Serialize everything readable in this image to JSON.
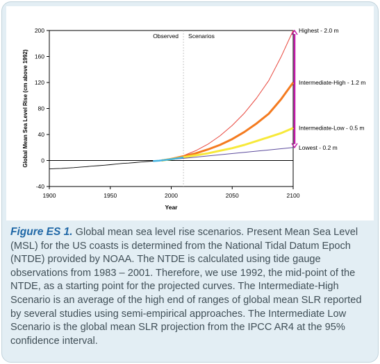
{
  "chart_data": {
    "type": "line",
    "title": "",
    "xlabel": "Year",
    "ylabel": "Global Mean Sea Level Rise (cm above 1992)",
    "xlim": [
      1900,
      2100
    ],
    "ylim": [
      -40,
      200
    ],
    "xticks": [
      1900,
      1950,
      2000,
      2050,
      2100
    ],
    "yticks": [
      -40,
      0,
      40,
      80,
      120,
      160,
      200
    ],
    "grid": false,
    "divider_year": 2010,
    "divider_labels": [
      "Observed",
      "Scenarios"
    ],
    "observed": {
      "x": [
        1900,
        1905,
        1910,
        1915,
        1920,
        1925,
        1930,
        1935,
        1940,
        1945,
        1950,
        1955,
        1960,
        1965,
        1970,
        1975,
        1980,
        1985,
        1990,
        1992
      ],
      "y": [
        -13,
        -12.5,
        -12.2,
        -11.5,
        -11,
        -10.2,
        -9.5,
        -8.6,
        -8,
        -7.2,
        -6.4,
        -5.4,
        -4.5,
        -3.9,
        -3.2,
        -2.3,
        -1.6,
        -1,
        -0.4,
        0
      ]
    },
    "bridge": {
      "x": [
        1985,
        1990,
        1995,
        2000,
        2005,
        2010
      ],
      "y": [
        -1,
        -0.3,
        0.8,
        2,
        3.4,
        4.8
      ]
    },
    "series": [
      {
        "name": "Highest - 2.0 m",
        "color": "#e8453b",
        "width": 1,
        "x": [
          1992,
          2000,
          2010,
          2020,
          2030,
          2040,
          2050,
          2060,
          2070,
          2080,
          2090,
          2100
        ],
        "y": [
          0,
          2.5,
          7.5,
          15,
          25,
          38,
          54,
          73,
          96,
          123,
          159,
          200
        ]
      },
      {
        "name": "Intermediate-High - 1.2 m",
        "color": "#f47b20",
        "width": 3,
        "x": [
          1992,
          2000,
          2010,
          2020,
          2030,
          2040,
          2050,
          2060,
          2070,
          2080,
          2090,
          2100
        ],
        "y": [
          0,
          2.5,
          6.5,
          11,
          17,
          24,
          33,
          44,
          57,
          72,
          94,
          120
        ]
      },
      {
        "name": "Intermediate-Low - 0.5 m",
        "color": "#f7e93a",
        "width": 3,
        "x": [
          1992,
          2000,
          2010,
          2020,
          2030,
          2040,
          2050,
          2060,
          2070,
          2080,
          2090,
          2100
        ],
        "y": [
          0,
          2,
          5,
          8,
          11,
          15,
          19,
          24,
          30,
          36,
          42,
          50
        ]
      },
      {
        "name": "Lowest - 0.2 m",
        "color": "#5b4a9c",
        "width": 1,
        "x": [
          1992,
          2100
        ],
        "y": [
          0,
          20
        ]
      }
    ],
    "range_bar": {
      "from": 20,
      "to": 200,
      "color": "#c219a8"
    }
  },
  "caption": {
    "label": "Figure ES 1.",
    "text": " Global mean sea level rise scenarios. Present Mean Sea Level (MSL) for the US coasts is determined from the National Tidal Datum Epoch (NTDE) provided by NOAA. The NTDE is calculated using tide gauge observations from 1983 – 2001. Therefore, we use 1992, the mid-point of the NTDE, as a starting point for the projected curves. The Intermediate-High Scenario is an average of the high end of ranges of global mean SLR reported by several studies using semi-empirical approaches. The Intermediate Low Scenario is the global mean SLR projection from the IPCC AR4 at the 95% confidence interval."
  }
}
